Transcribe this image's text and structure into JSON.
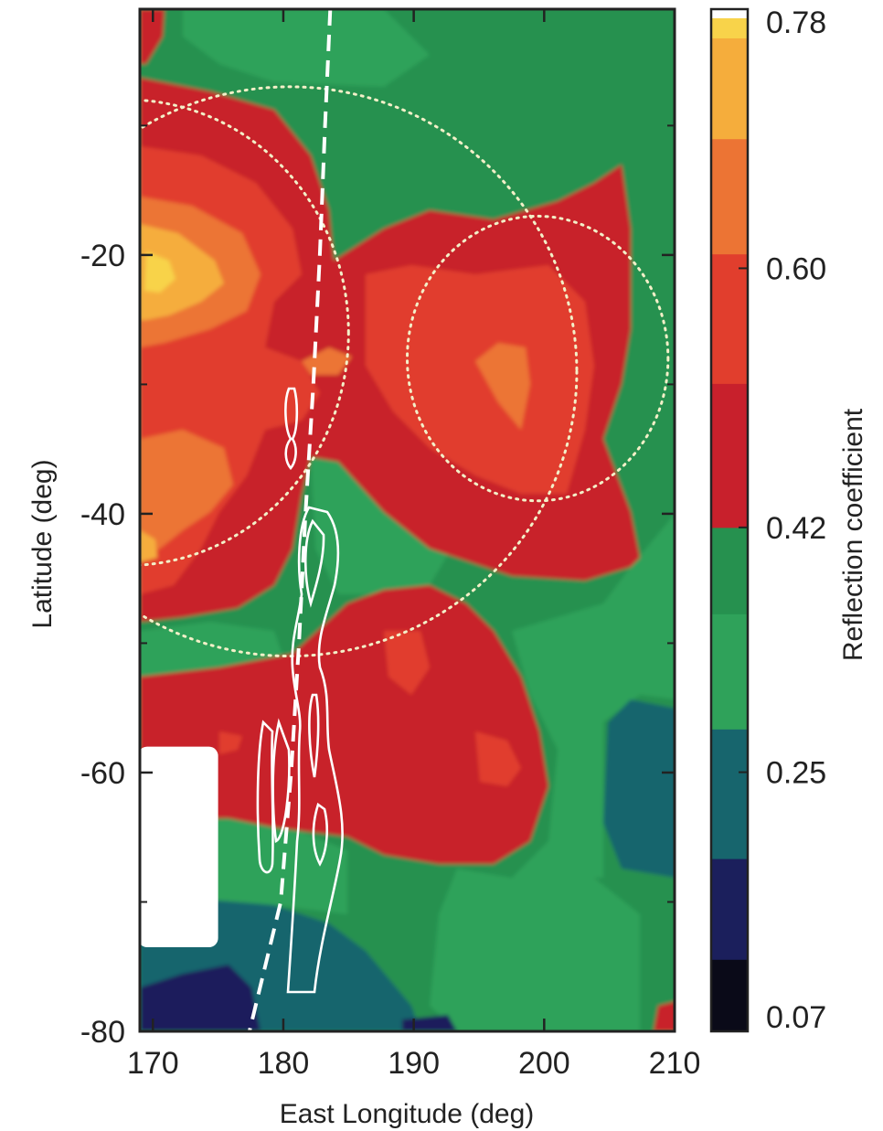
{
  "chart_data": {
    "type": "heatmap",
    "subtype": "filled-contour map",
    "xlabel": "East Longitude (deg)",
    "ylabel": "Latitude (deg)",
    "xlim": [
      169,
      210
    ],
    "ylim": [
      -80,
      -1
    ],
    "x_ticks": [
      170,
      180,
      190,
      200,
      210
    ],
    "y_ticks": [
      -20,
      -40,
      -60,
      -80
    ],
    "colorbar": {
      "label": "Reflection coefficient",
      "range": [
        0.07,
        0.78
      ],
      "tick_values": [
        0.78,
        0.6,
        0.42,
        0.25,
        0.07
      ],
      "tick_labels": [
        "0.78",
        "0.60",
        "0.42",
        "0.25",
        "0.07"
      ],
      "levels": [
        {
          "low": 0.07,
          "high": 0.12,
          "color": "#0a0a18"
        },
        {
          "low": 0.12,
          "high": 0.19,
          "color": "#1b1f5c"
        },
        {
          "low": 0.19,
          "high": 0.28,
          "color": "#17656d"
        },
        {
          "low": 0.28,
          "high": 0.36,
          "color": "#2fa25a"
        },
        {
          "low": 0.36,
          "high": 0.42,
          "color": "#26914f"
        },
        {
          "low": 0.42,
          "high": 0.52,
          "color": "#c8202c"
        },
        {
          "low": 0.52,
          "high": 0.61,
          "color": "#e13e2d"
        },
        {
          "low": 0.61,
          "high": 0.69,
          "color": "#ec7434"
        },
        {
          "low": 0.69,
          "high": 0.76,
          "color": "#f5ad3c"
        },
        {
          "low": 0.76,
          "high": 0.78,
          "color": "#f8d34a"
        }
      ]
    },
    "overlays": {
      "dotted_circles": [
        {
          "center": [
            180.5,
            -29
          ],
          "radius_x": 22,
          "radius_y": 22
        },
        {
          "center": [
            199.5,
            -28
          ],
          "radius_x": 10,
          "radius_y": 11
        },
        {
          "center": [
            168,
            -26
          ],
          "radius_x": 17,
          "radius_y": 18
        }
      ],
      "dashed_track": [
        [
          183.6,
          -1
        ],
        [
          183.2,
          -10
        ],
        [
          182.8,
          -20
        ],
        [
          182.3,
          -30
        ],
        [
          181.7,
          -40
        ],
        [
          181.2,
          -50
        ],
        [
          180.6,
          -60
        ],
        [
          179.8,
          -70
        ],
        [
          177.4,
          -80
        ]
      ],
      "data_gap": {
        "lon": [
          169,
          175
        ],
        "lat": [
          -73.5,
          -58
        ]
      }
    },
    "colors": {
      "frame": "#222222",
      "overlay": "#ffffff",
      "circle": "#f3f0c8"
    }
  }
}
